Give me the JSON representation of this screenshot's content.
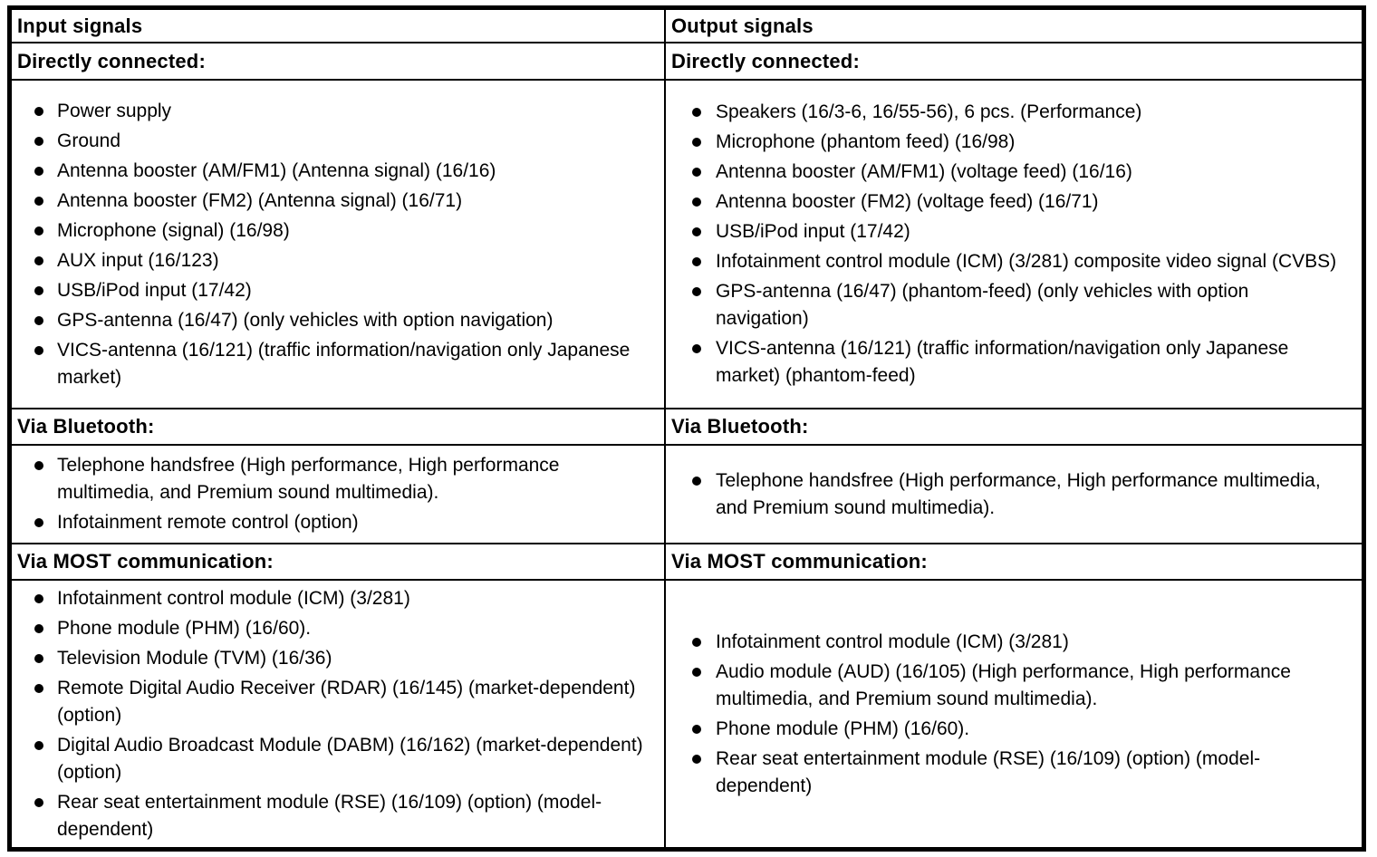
{
  "document": {
    "colors": {
      "border": "#000000",
      "text": "#000000",
      "background": "#ffffff"
    },
    "columns": [
      {
        "header": "Input signals",
        "sections": [
          {
            "title": "Directly connected:",
            "items": [
              "Power supply",
              "Ground",
              "Antenna booster (AM/FM1) (Antenna signal) (16/16)",
              "Antenna booster (FM2) (Antenna signal) (16/71)",
              "Microphone (signal) (16/98)",
              "AUX input (16/123)",
              "USB/iPod input (17/42)",
              "GPS-antenna (16/47) (only vehicles with option navigation)",
              "VICS-antenna (16/121) (traffic information/navigation only Japanese market)"
            ]
          },
          {
            "title": "Via Bluetooth:",
            "items": [
              "Telephone handsfree (High performance, High performance multimedia, and Premium sound multimedia).",
              "Infotainment remote control (option)"
            ]
          },
          {
            "title": "Via MOST communication:",
            "items": [
              "Infotainment control module (ICM) (3/281)",
              "Phone module (PHM) (16/60).",
              "Television Module (TVM) (16/36)",
              "Remote Digital Audio Receiver (RDAR) (16/145) (market-dependent) (option)",
              "Digital Audio Broadcast Module (DABM) (16/162) (market-dependent) (option)",
              "Rear seat entertainment module (RSE) (16/109) (option) (model-dependent)"
            ]
          }
        ]
      },
      {
        "header": "Output signals",
        "sections": [
          {
            "title": "Directly connected:",
            "items": [
              "Speakers (16/3-6, 16/55-56), 6 pcs. (Performance)",
              "Microphone (phantom feed) (16/98)",
              "Antenna booster (AM/FM1) (voltage feed) (16/16)",
              "Antenna booster (FM2) (voltage feed) (16/71)",
              "USB/iPod input (17/42)",
              "Infotainment control module (ICM) (3/281) composite video signal (CVBS)",
              "GPS-antenna (16/47) (phantom-feed) (only vehicles with option navigation)",
              "VICS-antenna (16/121) (traffic information/navigation only Japanese market) (phantom-feed)"
            ]
          },
          {
            "title": "Via Bluetooth:",
            "items": [
              "Telephone handsfree (High performance, High performance multimedia, and Premium sound multimedia)."
            ]
          },
          {
            "title": "Via MOST communication:",
            "items": [
              "Infotainment control module (ICM) (3/281)",
              "Audio module (AUD) (16/105) (High performance, High performance multimedia, and Premium sound multimedia).",
              "Phone module (PHM) (16/60).",
              "Rear seat entertainment module (RSE) (16/109) (option) (model-dependent)"
            ]
          }
        ]
      }
    ]
  }
}
